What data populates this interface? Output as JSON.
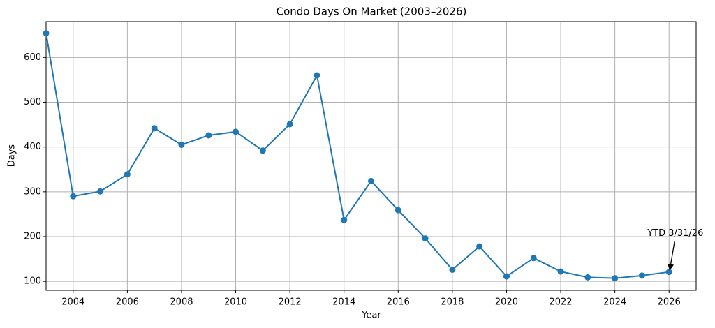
{
  "chart_data": {
    "type": "line",
    "title": "Condo Days On Market (2003–2026)",
    "x_label": "Year",
    "y_label": "Days",
    "x": [
      2003,
      2004,
      2005,
      2006,
      2007,
      2008,
      2009,
      2010,
      2011,
      2012,
      2013,
      2014,
      2015,
      2016,
      2017,
      2018,
      2019,
      2020,
      2021,
      2022,
      2023,
      2024,
      2025,
      2026
    ],
    "series": [
      {
        "name": "Days",
        "color": "#1f77b4",
        "values": [
          654,
          290,
          301,
          339,
          442,
          405,
          426,
          434,
          392,
          451,
          560,
          237,
          324,
          259,
          196,
          126,
          178,
          111,
          152,
          122,
          109,
          107,
          113,
          121
        ]
      }
    ],
    "xlim": [
      2003,
      2027
    ],
    "ylim": [
      80,
      680
    ],
    "xticks": [
      2004,
      2006,
      2008,
      2010,
      2012,
      2014,
      2016,
      2018,
      2020,
      2022,
      2024,
      2026
    ],
    "yticks": [
      100,
      200,
      300,
      400,
      500,
      600
    ],
    "grid": true,
    "annotation": "YTD 3/31/26"
  }
}
